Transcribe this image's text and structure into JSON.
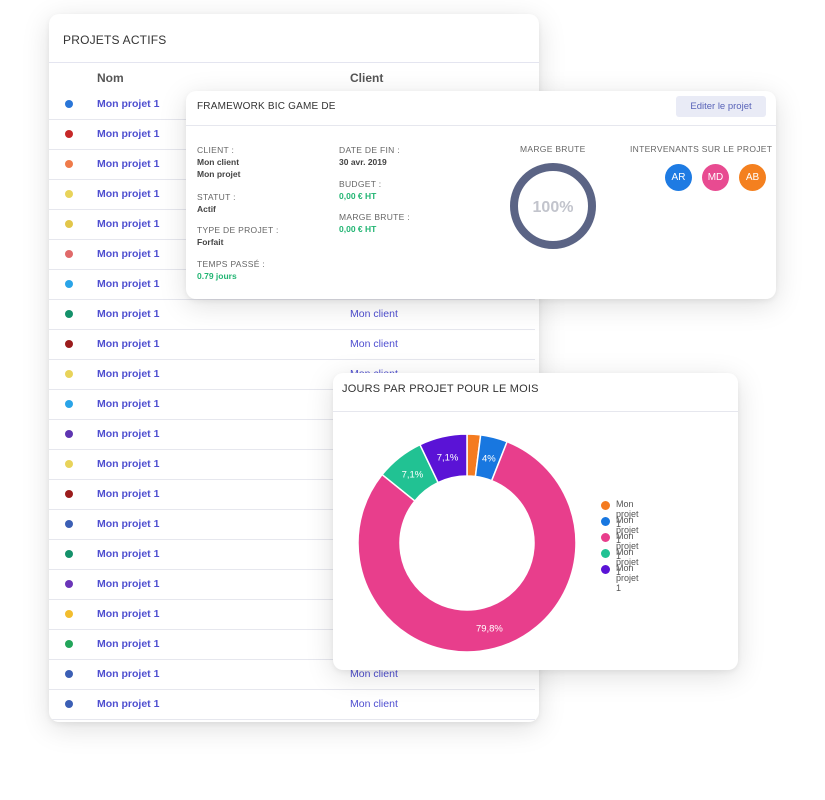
{
  "projects": {
    "title": "PROJETS ACTIFS",
    "columns": {
      "name": "Nom",
      "client": "Client"
    },
    "rows": [
      {
        "name": "Mon projet 1",
        "client": "",
        "color": "#2a76d8"
      },
      {
        "name": "Mon projet 1",
        "client": "",
        "color": "#c62828"
      },
      {
        "name": "Mon projet 1",
        "client": "",
        "color": "#ef7b4a"
      },
      {
        "name": "Mon projet 1",
        "client": "",
        "color": "#e8d35a"
      },
      {
        "name": "Mon projet 1",
        "client": "",
        "color": "#e2c64a"
      },
      {
        "name": "Mon projet 1",
        "client": "",
        "color": "#e06a6a"
      },
      {
        "name": "Mon projet 1",
        "client": "",
        "color": "#2aa4e8"
      },
      {
        "name": "Mon projet 1",
        "client": "Mon client",
        "color": "#14916a"
      },
      {
        "name": "Mon projet 1",
        "client": "Mon client",
        "color": "#9b1c1c"
      },
      {
        "name": "Mon projet 1",
        "client": "Mon client",
        "color": "#e8d35a"
      },
      {
        "name": "Mon projet 1",
        "client": "",
        "color": "#2aa4e8"
      },
      {
        "name": "Mon projet 1",
        "client": "",
        "color": "#5e35b1"
      },
      {
        "name": "Mon projet 1",
        "client": "",
        "color": "#e8d35a"
      },
      {
        "name": "Mon projet 1",
        "client": "",
        "color": "#9b1c1c"
      },
      {
        "name": "Mon projet 1",
        "client": "",
        "color": "#3b5fb5"
      },
      {
        "name": "Mon projet 1",
        "client": "",
        "color": "#14916a"
      },
      {
        "name": "Mon projet 1",
        "client": "",
        "color": "#6a35b8"
      },
      {
        "name": "Mon projet 1",
        "client": "",
        "color": "#f2bd2e"
      },
      {
        "name": "Mon projet 1",
        "client": "",
        "color": "#22a55a"
      },
      {
        "name": "Mon projet 1",
        "client": "Mon client",
        "color": "#3b5fb5"
      },
      {
        "name": "Mon projet 1",
        "client": "Mon client",
        "color": "#3b5fb5"
      }
    ]
  },
  "detail": {
    "title": "FRAMEWORK BIC GAME DE",
    "edit_label": "Editer le projet",
    "client_label": "CLIENT :",
    "client_value": "Mon client",
    "project_value": "Mon projet",
    "status_label": "STATUT :",
    "status_value": "Actif",
    "type_label": "TYPE DE PROJET :",
    "type_value": "Forfait",
    "time_label": "TEMPS PASSÉ :",
    "time_value": "0.79 jours",
    "end_label": "DATE DE FIN :",
    "end_value": "30 avr. 2019",
    "budget_label": "BUDGET :",
    "budget_value": "0,00 € HT",
    "margin_label": "MARGE BRUTE :",
    "margin_value": "0,00 € HT",
    "ring_title": "MARGE BRUTE",
    "ring_value": "100%",
    "ring_fraction": 1.0,
    "team_title": "INTERVENANTS SUR LE PROJET",
    "team": [
      {
        "initials": "AR",
        "color": "#1e7be3"
      },
      {
        "initials": "MD",
        "color": "#e84b91"
      },
      {
        "initials": "AB",
        "color": "#f4801f"
      }
    ]
  },
  "chart_data": {
    "type": "pie",
    "title": "JOURS PAR PROJET POUR LE MOIS",
    "categories": [
      "Mon projet 1",
      "Mon projet 1",
      "Mon projet 1",
      "Mon projet 1",
      "Mon projet 1"
    ],
    "values": [
      2,
      4,
      79.8,
      7.1,
      7.1
    ],
    "labels": [
      "",
      "4%",
      "79,8%",
      "7,1%",
      "7,1%"
    ],
    "colors": [
      "#f47b20",
      "#1877e0",
      "#e83e8c",
      "#21c293",
      "#5a13d6"
    ],
    "legend": "right"
  }
}
